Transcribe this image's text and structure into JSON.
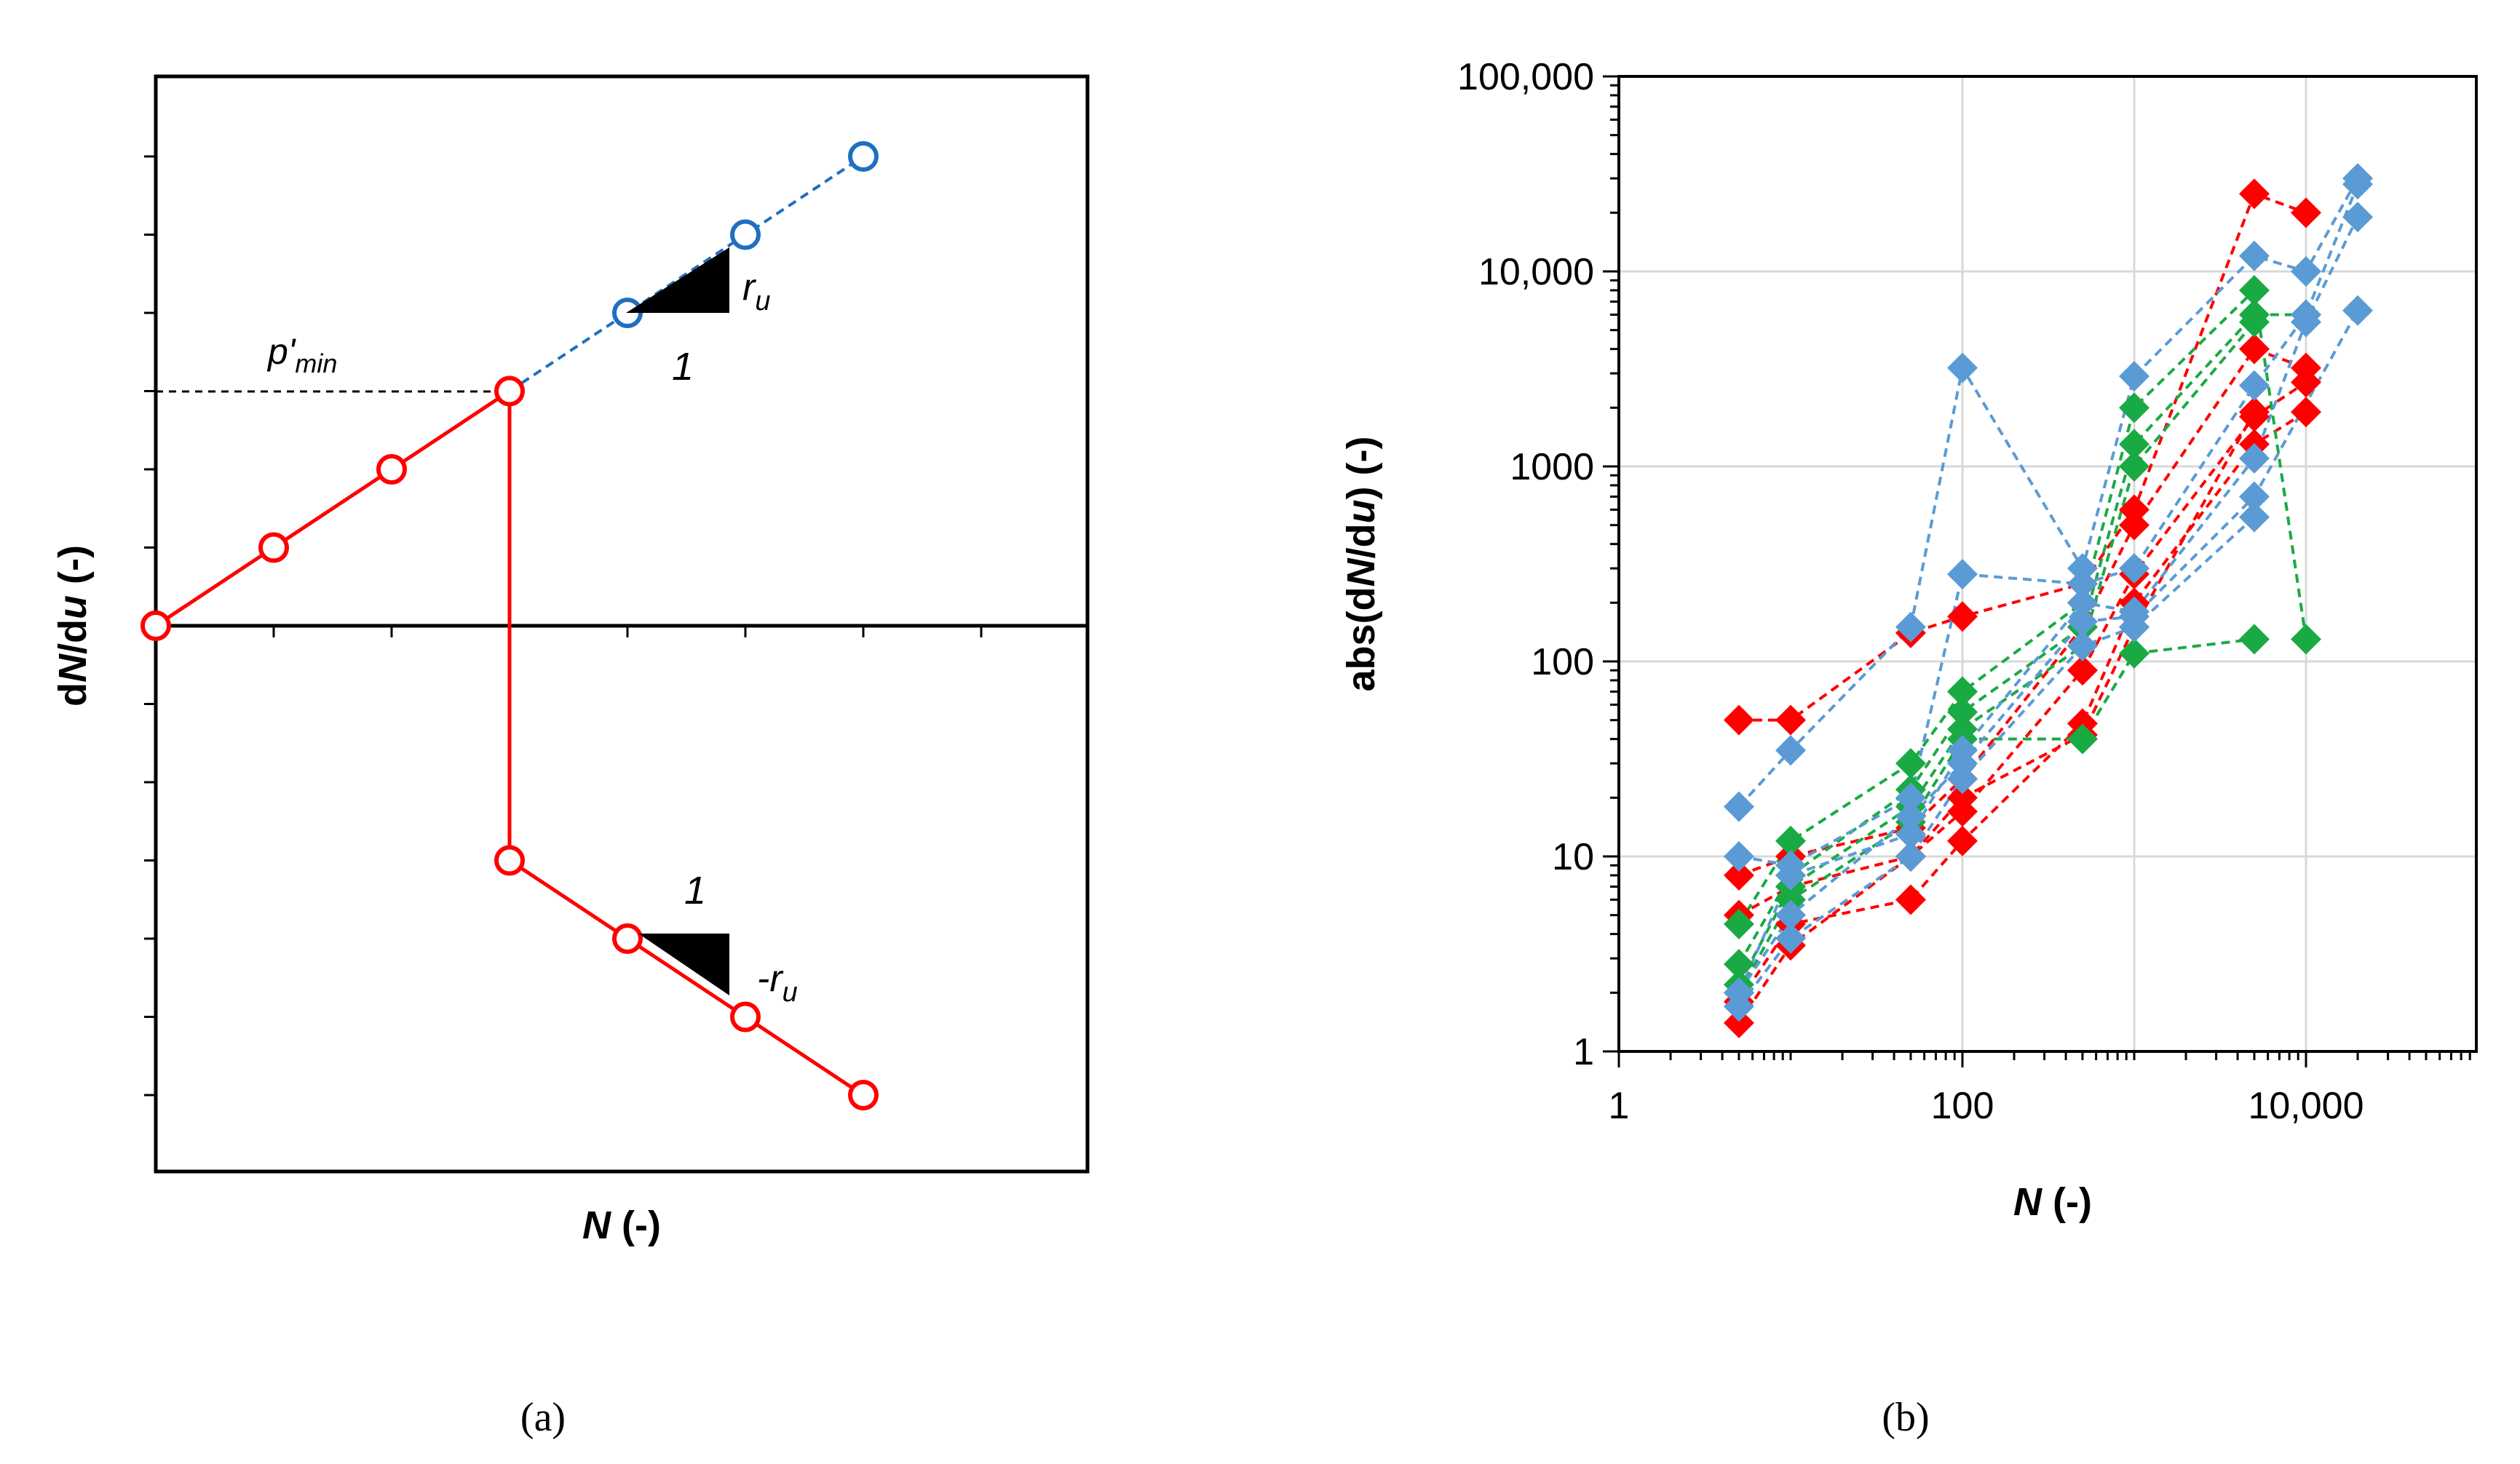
{
  "chart_data": [
    {
      "panel": "(a)",
      "type": "line",
      "schematic": true,
      "xlabel_var": "N",
      "xlabel_unit": " (-)",
      "ylabel_prefix": "d",
      "ylabel_var1": "N",
      "ylabel_slash": "/d",
      "ylabel_var2": "u",
      "ylabel_unit": " (-)",
      "xlim": [
        0,
        8
      ],
      "ylim": [
        -7,
        7
      ],
      "series": [
        {
          "name": "positive-branch",
          "color": "#ff0000",
          "style": "solid",
          "x": [
            0,
            1,
            2,
            3
          ],
          "y": [
            0,
            1,
            2,
            3
          ]
        },
        {
          "name": "post-transition-branch",
          "color": "#1f6fc1",
          "style": "dashed",
          "x": [
            3,
            4,
            5,
            6
          ],
          "y": [
            3,
            4,
            5,
            6
          ]
        },
        {
          "name": "negative-branch",
          "color": "#ff0000",
          "style": "solid",
          "x": [
            3,
            3,
            4,
            5,
            6
          ],
          "y": [
            3,
            -3,
            -4,
            -5,
            -6
          ]
        }
      ],
      "markers": {
        "red": {
          "x": [
            0,
            1,
            2,
            3,
            3,
            4,
            5,
            6
          ],
          "y": [
            0,
            1,
            2,
            3,
            -3,
            -4,
            -5,
            -6
          ]
        },
        "blue": {
          "x": [
            4,
            5,
            6
          ],
          "y": [
            4,
            5,
            6
          ]
        }
      },
      "pmin_label": {
        "base": "p'",
        "sub": "min"
      },
      "slope_up": {
        "run_label": "1",
        "rise_label": "r",
        "rise_sub": "u"
      },
      "slope_down": {
        "run_label": "1",
        "rise_label": "-r",
        "rise_sub": "u"
      }
    },
    {
      "panel": "(b)",
      "type": "scatter",
      "scale": "log-log",
      "xlabel_var": "N",
      "xlabel_unit": " (-)",
      "ylabel_prefix": "abs(d",
      "ylabel_var1": "N",
      "ylabel_slash": "/d",
      "ylabel_var2": "u",
      "ylabel_unit": ") (-)",
      "xlim": [
        1,
        100000
      ],
      "ylim": [
        1,
        100000
      ],
      "x_ticks": [
        {
          "value": 1,
          "label": "1"
        },
        {
          "value": 100,
          "label": "100"
        },
        {
          "value": 10000,
          "label": "10,000"
        }
      ],
      "y_ticks": [
        {
          "value": 1,
          "label": "1"
        },
        {
          "value": 10,
          "label": "10"
        },
        {
          "value": 100,
          "label": "100"
        },
        {
          "value": 1000,
          "label": "1000"
        },
        {
          "value": 10000,
          "label": "10,000"
        },
        {
          "value": 100000,
          "label": "100,000"
        }
      ],
      "grid": true,
      "series": [
        {
          "name": "red-1",
          "color": "#ff0000",
          "x": [
            5,
            10,
            50,
            100,
            500,
            1000,
            5000,
            10000
          ],
          "y": [
            50,
            50,
            140,
            170,
            250,
            600,
            25000,
            20000
          ]
        },
        {
          "name": "red-2",
          "color": "#ff0000",
          "x": [
            5,
            10,
            50,
            100,
            500,
            1000,
            5000,
            10000
          ],
          "y": [
            8,
            10,
            14,
            25,
            150,
            500,
            4000,
            3200
          ]
        },
        {
          "name": "red-3",
          "color": "#ff0000",
          "x": [
            5,
            10,
            50,
            100,
            500,
            1000,
            5000,
            10000
          ],
          "y": [
            5,
            7,
            10,
            17,
            90,
            280,
            1800,
            2700
          ]
        },
        {
          "name": "red-4",
          "color": "#ff0000",
          "x": [
            5,
            10,
            50,
            100,
            500,
            1000,
            5000,
            10000
          ],
          "y": [
            1.8,
            4.5,
            6,
            12,
            48,
            200,
            1300,
            1900
          ]
        },
        {
          "name": "red-5",
          "color": "#ff0000",
          "x": [
            5,
            10,
            50,
            100,
            500,
            1000,
            5000
          ],
          "y": [
            1.4,
            3.5,
            10,
            20,
            42,
            150,
            1900
          ]
        },
        {
          "name": "green-1",
          "color": "#1aaa44",
          "x": [
            5,
            10,
            50,
            100,
            500,
            1000,
            5000,
            10000
          ],
          "y": [
            4.5,
            12,
            30,
            70,
            200,
            2000,
            8000,
            130
          ]
        },
        {
          "name": "green-2",
          "color": "#1aaa44",
          "x": [
            5,
            10,
            50,
            100,
            500,
            1000,
            5000,
            10000
          ],
          "y": [
            2.8,
            8,
            22,
            55,
            150,
            1300,
            6000,
            6000
          ]
        },
        {
          "name": "green-3",
          "color": "#1aaa44",
          "x": [
            5,
            10,
            50,
            100,
            500,
            1000,
            5000
          ],
          "y": [
            2.2,
            7,
            18,
            45,
            120,
            1000,
            5500
          ]
        },
        {
          "name": "green-4",
          "color": "#1aaa44",
          "x": [
            5,
            10,
            50,
            100,
            500,
            1000,
            5000
          ],
          "y": [
            2,
            6,
            15,
            40,
            40,
            110,
            130
          ]
        },
        {
          "name": "blue-1",
          "color": "#5b9bd5",
          "x": [
            5,
            10,
            50,
            100,
            500,
            1000,
            5000,
            10000,
            20000
          ],
          "y": [
            18,
            35,
            150,
            3200,
            300,
            2900,
            12000,
            10000,
            30000
          ]
        },
        {
          "name": "blue-2",
          "color": "#5b9bd5",
          "x": [
            5,
            10,
            50,
            100,
            500,
            1000,
            5000,
            10000,
            20000
          ],
          "y": [
            10,
            9,
            20,
            280,
            250,
            300,
            2600,
            6000,
            28000
          ]
        },
        {
          "name": "blue-3",
          "color": "#5b9bd5",
          "x": [
            5,
            10,
            50,
            100,
            500,
            1000,
            5000,
            10000,
            20000
          ],
          "y": [
            2,
            8,
            13,
            35,
            200,
            180,
            1100,
            5500,
            19000
          ]
        },
        {
          "name": "blue-4",
          "color": "#5b9bd5",
          "x": [
            5,
            10,
            50,
            100,
            500,
            1000,
            5000,
            20000
          ],
          "y": [
            2,
            5,
            16,
            30,
            160,
            170,
            700,
            6300
          ]
        },
        {
          "name": "blue-5",
          "color": "#5b9bd5",
          "x": [
            5,
            10,
            50,
            100,
            500,
            1000,
            5000
          ],
          "y": [
            1.7,
            3.8,
            10,
            25,
            120,
            150,
            550
          ]
        }
      ]
    }
  ],
  "captions": {
    "a": "(a)",
    "b": "(b)"
  }
}
